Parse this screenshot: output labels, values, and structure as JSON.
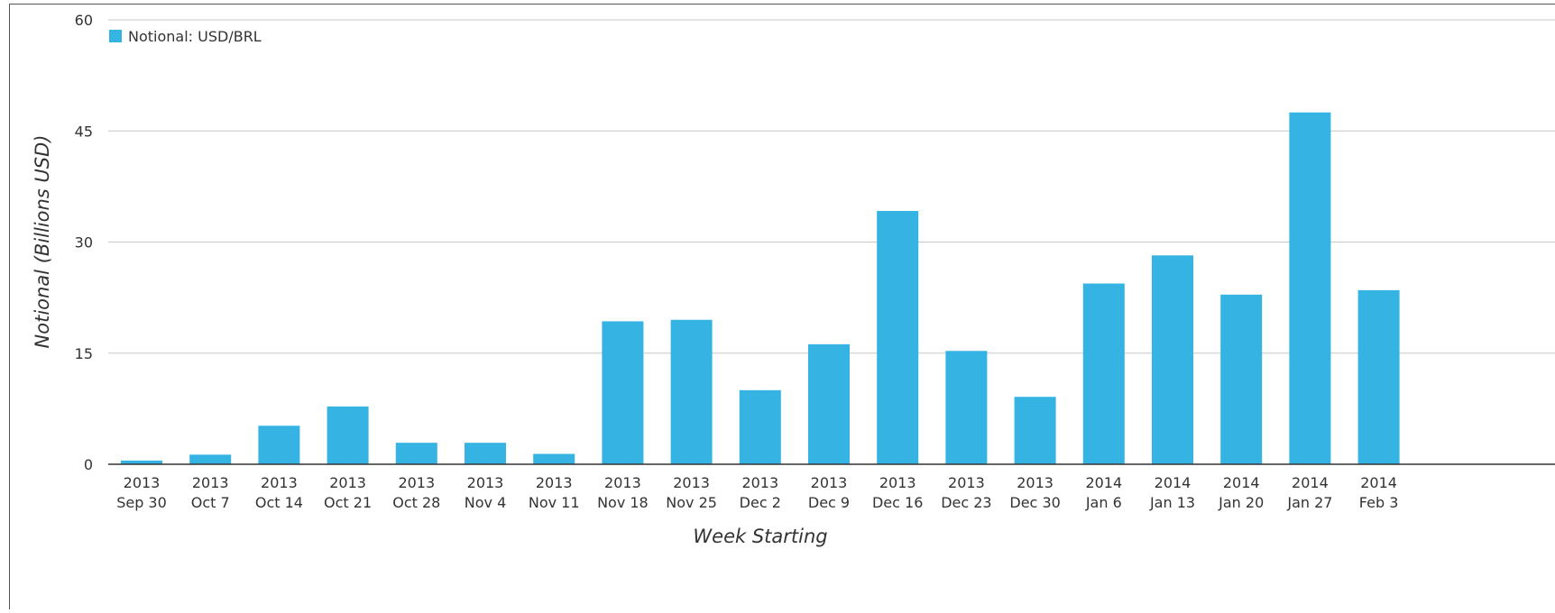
{
  "chart_data": {
    "type": "bar",
    "title": "",
    "xlabel": "Week Starting",
    "ylabel": "Notional (Billions USD)",
    "ylim": [
      0,
      60
    ],
    "yticks": [
      0,
      15,
      30,
      45,
      60
    ],
    "grid": true,
    "legend_position": "top-left",
    "color": "#35b4e4",
    "categories": [
      [
        "2013",
        "Sep 30"
      ],
      [
        "2013",
        "Oct 7"
      ],
      [
        "2013",
        "Oct 14"
      ],
      [
        "2013",
        "Oct 21"
      ],
      [
        "2013",
        "Oct 28"
      ],
      [
        "2013",
        "Nov 4"
      ],
      [
        "2013",
        "Nov 11"
      ],
      [
        "2013",
        "Nov 18"
      ],
      [
        "2013",
        "Nov 25"
      ],
      [
        "2013",
        "Dec 2"
      ],
      [
        "2013",
        "Dec 9"
      ],
      [
        "2013",
        "Dec 16"
      ],
      [
        "2013",
        "Dec 23"
      ],
      [
        "2013",
        "Dec 30"
      ],
      [
        "2014",
        "Jan 6"
      ],
      [
        "2014",
        "Jan 13"
      ],
      [
        "2014",
        "Jan 20"
      ],
      [
        "2014",
        "Jan 27"
      ],
      [
        "2014",
        "Feb 3"
      ]
    ],
    "series": [
      {
        "name": "Notional: USD/BRL",
        "values": [
          0.5,
          1.3,
          5.2,
          7.8,
          2.9,
          2.9,
          1.4,
          19.3,
          19.5,
          10.0,
          16.2,
          34.2,
          15.3,
          9.1,
          24.4,
          28.2,
          22.9,
          47.5,
          23.5
        ]
      }
    ]
  }
}
